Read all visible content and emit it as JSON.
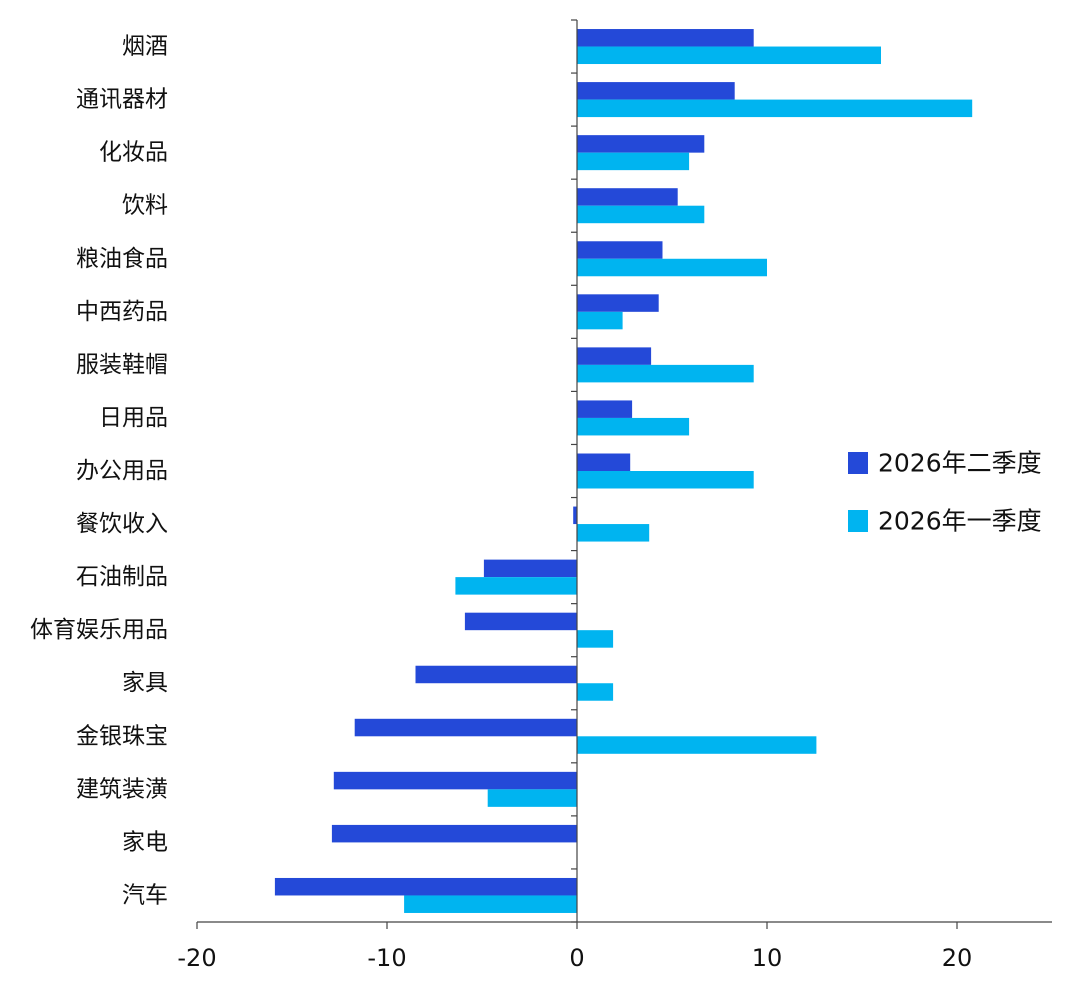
{
  "chart_data": {
    "type": "bar",
    "orientation": "horizontal",
    "categories": [
      "烟酒",
      "通讯器材",
      "化妆品",
      "饮料",
      "粮油食品",
      "中西药品",
      "服装鞋帽",
      "日用品",
      "办公用品",
      "餐饮收入",
      "石油制品",
      "体育娱乐用品",
      "家具",
      "金银珠宝",
      "建筑装潢",
      "家电",
      "汽车"
    ],
    "series": [
      {
        "name": "2026年二季度",
        "color": "#2449d8",
        "values": [
          9.3,
          8.3,
          6.7,
          5.3,
          4.5,
          4.3,
          3.9,
          2.9,
          2.8,
          -0.2,
          -4.9,
          -5.9,
          -8.5,
          -11.7,
          -12.8,
          -12.9,
          -15.9
        ]
      },
      {
        "name": "2026年一季度",
        "color": "#00b4f0",
        "values": [
          16.0,
          20.8,
          5.9,
          6.7,
          10.0,
          2.4,
          9.3,
          5.9,
          9.3,
          3.8,
          -6.4,
          1.9,
          1.9,
          12.6,
          -4.7,
          0.0,
          -9.1
        ]
      }
    ],
    "xlim": [
      -20,
      25
    ],
    "xticks": [
      -20,
      -10,
      0,
      10,
      20
    ],
    "xtick_labels": [
      "-20",
      "-10",
      "0",
      "10",
      "20"
    ],
    "grid": false,
    "legend_position": "right"
  }
}
